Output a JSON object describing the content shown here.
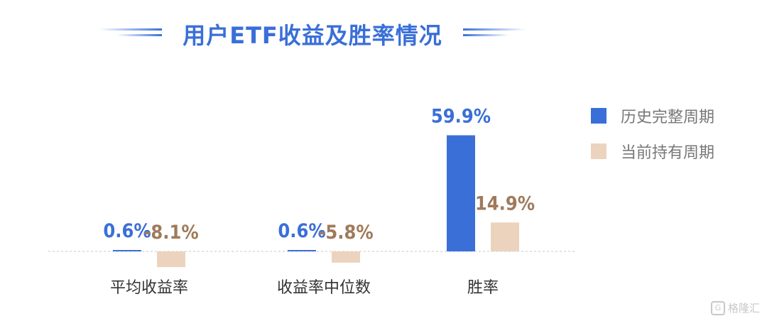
{
  "chart_data": {
    "type": "bar",
    "title": "用户ETF收益及胜率情况",
    "categories": [
      "平均收益率",
      "收益率中位数",
      "胜率"
    ],
    "series": [
      {
        "name": "历史完整周期",
        "values": [
          0.6,
          0.6,
          59.9
        ],
        "labels": [
          "0.6%",
          "0.6%",
          "59.9%"
        ],
        "color": "#3a6fd8"
      },
      {
        "name": "当前持有周期",
        "values": [
          -8.1,
          -5.8,
          14.9
        ],
        "labels": [
          "-8.1%",
          "-5.8%",
          "14.9%"
        ],
        "color": "#ecd3be"
      }
    ],
    "label_colors": {
      "positive_blue": "#3a6fd8",
      "brown": "#a07a5a"
    },
    "ylim": [
      -10,
      65
    ],
    "unit": "%",
    "grid": false,
    "legend_position": "right"
  },
  "watermark": {
    "text": "格隆汇",
    "icon": "G"
  }
}
